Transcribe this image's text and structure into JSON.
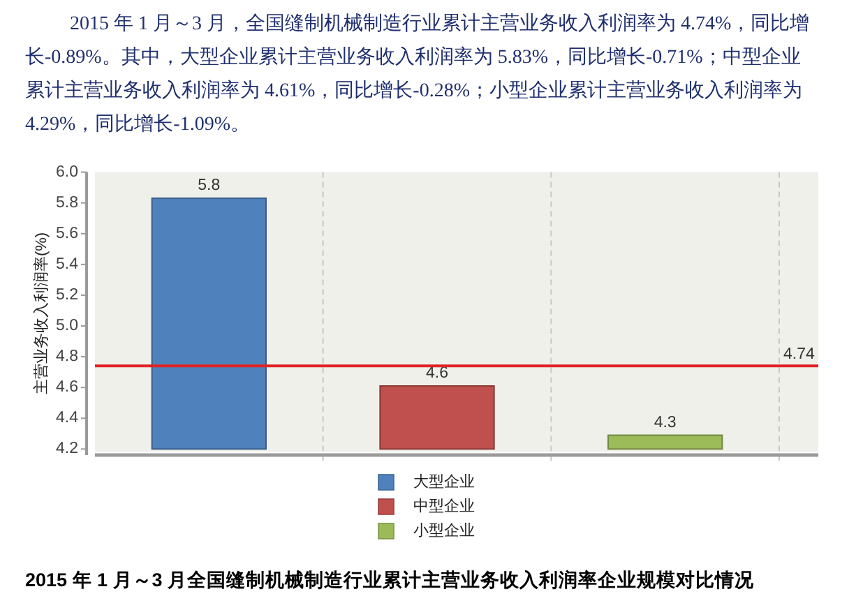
{
  "chart_data": {
    "type": "bar",
    "title": "2015 年 1 月～3 月全国缝制机械制造行业累计主营业务收入利润率企业规模对比情况",
    "annotations": [
      "2015 年 1 月～3 月，全国缝制机械制造行业累计主营业务收入利润率为 4.74%，同比增长-0.89%。其中，大型企业累计主营业务收入利润率为 5.83%，同比增长-0.71%；中型企业累计主营业务收入利润率为 4.61%，同比增长-0.28%；小型企业累计主营业务收入利润率为 4.29%，同比增长-1.09%。"
    ],
    "ylabel": "主营业务收入利润率(%)",
    "categories": [
      null,
      null,
      null
    ],
    "series": [
      {
        "name": "大型企业",
        "color": "#4f81bd",
        "values": [
          5.83,
          null,
          null
        ],
        "value_labels": [
          "5.8",
          null,
          null
        ]
      },
      {
        "name": "中型企业",
        "color": "#c0504d",
        "values": [
          null,
          4.61,
          null
        ],
        "value_labels": [
          null,
          "4.6",
          null
        ]
      },
      {
        "name": "小型企业",
        "color": "#9bbb59",
        "values": [
          null,
          null,
          4.29
        ],
        "value_labels": [
          null,
          null,
          "4.3"
        ]
      }
    ],
    "ylim": [
      4.2,
      6.0
    ],
    "yticks": [
      {
        "value": 4.2,
        "label": "4.2"
      },
      {
        "value": 4.4,
        "label": "4.4"
      },
      {
        "value": 4.6,
        "label": "4.6"
      },
      {
        "value": 4.8,
        "label": "4.8"
      },
      {
        "value": 5.0,
        "label": "5.0"
      },
      {
        "value": 5.2,
        "label": "5.2"
      },
      {
        "value": 5.4,
        "label": "5.4"
      },
      {
        "value": 5.6,
        "label": "5.6"
      },
      {
        "value": 5.8,
        "label": "5.8"
      },
      {
        "value": 6.0,
        "label": "6.0"
      }
    ],
    "grid": "x",
    "legend": "bottom",
    "ref_lines": [
      {
        "axis": "y",
        "value": 4.74,
        "label": "4.74",
        "color": "#e02424"
      }
    ]
  }
}
